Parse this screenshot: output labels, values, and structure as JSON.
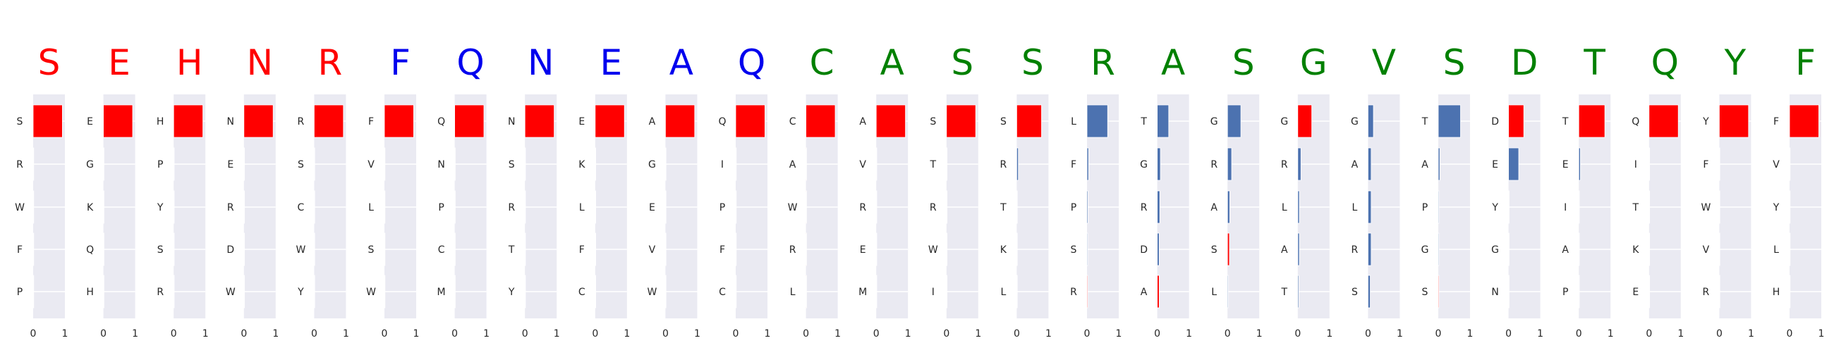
{
  "chart_data": {
    "type": "bar",
    "orientation": "horizontal",
    "xlim": [
      0,
      1
    ],
    "xticks": [
      "0",
      "1"
    ],
    "grid": true,
    "colors": {
      "red": "#ff0000",
      "blue": "#0000ee",
      "green": "#008000",
      "bar_blue": "#4c72b0",
      "bar_red": "#ff0000",
      "panel_bg": "#eaeaf2"
    },
    "panels": [
      {
        "letter": "S",
        "letter_color": "red",
        "categories": [
          "S",
          "R",
          "W",
          "F",
          "P"
        ],
        "values": [
          0.92,
          0,
          0,
          0,
          0
        ],
        "bar_colors": [
          "red",
          "red",
          "red",
          "red",
          "red"
        ]
      },
      {
        "letter": "E",
        "letter_color": "red",
        "categories": [
          "E",
          "G",
          "K",
          "Q",
          "H"
        ],
        "values": [
          0.92,
          0,
          0,
          0,
          0
        ],
        "bar_colors": [
          "red",
          "red",
          "red",
          "red",
          "red"
        ]
      },
      {
        "letter": "H",
        "letter_color": "red",
        "categories": [
          "H",
          "P",
          "Y",
          "S",
          "R"
        ],
        "values": [
          0.92,
          0,
          0,
          0,
          0
        ],
        "bar_colors": [
          "red",
          "red",
          "red",
          "red",
          "red"
        ]
      },
      {
        "letter": "N",
        "letter_color": "red",
        "categories": [
          "N",
          "E",
          "R",
          "D",
          "W"
        ],
        "values": [
          0.92,
          0,
          0,
          0,
          0
        ],
        "bar_colors": [
          "red",
          "red",
          "red",
          "red",
          "red"
        ]
      },
      {
        "letter": "R",
        "letter_color": "red",
        "categories": [
          "R",
          "S",
          "C",
          "W",
          "Y"
        ],
        "values": [
          0.92,
          0,
          0,
          0,
          0
        ],
        "bar_colors": [
          "red",
          "red",
          "red",
          "red",
          "red"
        ]
      },
      {
        "letter": "F",
        "letter_color": "blue",
        "categories": [
          "F",
          "V",
          "L",
          "S",
          "W"
        ],
        "values": [
          0.92,
          0,
          0,
          0,
          0
        ],
        "bar_colors": [
          "red",
          "red",
          "red",
          "red",
          "red"
        ]
      },
      {
        "letter": "Q",
        "letter_color": "blue",
        "categories": [
          "Q",
          "N",
          "P",
          "C",
          "M"
        ],
        "values": [
          0.92,
          0,
          0,
          0,
          0
        ],
        "bar_colors": [
          "red",
          "red",
          "red",
          "red",
          "red"
        ]
      },
      {
        "letter": "N",
        "letter_color": "blue",
        "categories": [
          "N",
          "S",
          "R",
          "T",
          "Y"
        ],
        "values": [
          0.92,
          0,
          0,
          0,
          0
        ],
        "bar_colors": [
          "red",
          "red",
          "red",
          "red",
          "red"
        ]
      },
      {
        "letter": "E",
        "letter_color": "blue",
        "categories": [
          "E",
          "K",
          "L",
          "F",
          "C"
        ],
        "values": [
          0.92,
          0,
          0,
          0,
          0
        ],
        "bar_colors": [
          "red",
          "red",
          "red",
          "red",
          "red"
        ]
      },
      {
        "letter": "A",
        "letter_color": "blue",
        "categories": [
          "A",
          "G",
          "E",
          "V",
          "W"
        ],
        "values": [
          0.92,
          0,
          0,
          0,
          0
        ],
        "bar_colors": [
          "red",
          "red",
          "red",
          "red",
          "red"
        ]
      },
      {
        "letter": "Q",
        "letter_color": "blue",
        "categories": [
          "Q",
          "I",
          "P",
          "F",
          "C"
        ],
        "values": [
          0.92,
          0,
          0,
          0,
          0
        ],
        "bar_colors": [
          "red",
          "red",
          "red",
          "red",
          "red"
        ]
      },
      {
        "letter": "C",
        "letter_color": "green",
        "categories": [
          "C",
          "A",
          "W",
          "R",
          "L"
        ],
        "values": [
          0.92,
          0,
          0,
          0,
          0
        ],
        "bar_colors": [
          "red",
          "red",
          "red",
          "red",
          "red"
        ]
      },
      {
        "letter": "A",
        "letter_color": "green",
        "categories": [
          "A",
          "V",
          "R",
          "E",
          "M"
        ],
        "values": [
          0.92,
          0,
          0,
          0,
          0
        ],
        "bar_colors": [
          "red",
          "red",
          "red",
          "red",
          "red"
        ]
      },
      {
        "letter": "S",
        "letter_color": "green",
        "categories": [
          "S",
          "T",
          "R",
          "W",
          "I"
        ],
        "values": [
          0.92,
          0,
          0,
          0,
          0
        ],
        "bar_colors": [
          "red",
          "red",
          "red",
          "red",
          "red"
        ]
      },
      {
        "letter": "S",
        "letter_color": "green",
        "categories": [
          "S",
          "R",
          "T",
          "K",
          "L"
        ],
        "values": [
          0.78,
          0.05,
          0,
          0,
          0
        ],
        "bar_colors": [
          "red",
          "blue",
          "blue",
          "blue",
          "blue"
        ]
      },
      {
        "letter": "R",
        "letter_color": "green",
        "categories": [
          "L",
          "F",
          "P",
          "S",
          "R"
        ],
        "values": [
          0.65,
          0.05,
          0.03,
          0.02,
          0.02
        ],
        "bar_colors": [
          "blue",
          "blue",
          "blue",
          "blue",
          "red"
        ]
      },
      {
        "letter": "A",
        "letter_color": "green",
        "categories": [
          "T",
          "G",
          "R",
          "D",
          "A"
        ],
        "values": [
          0.36,
          0.1,
          0.08,
          0.06,
          0.06
        ],
        "bar_colors": [
          "blue",
          "blue",
          "blue",
          "blue",
          "red"
        ]
      },
      {
        "letter": "S",
        "letter_color": "green",
        "categories": [
          "G",
          "R",
          "A",
          "S",
          "L"
        ],
        "values": [
          0.42,
          0.13,
          0.07,
          0.06,
          0.02
        ],
        "bar_colors": [
          "blue",
          "blue",
          "blue",
          "red",
          "blue"
        ]
      },
      {
        "letter": "G",
        "letter_color": "green",
        "categories": [
          "G",
          "R",
          "L",
          "A",
          "T"
        ],
        "values": [
          0.44,
          0.1,
          0.05,
          0.05,
          0.03
        ],
        "bar_colors": [
          "red",
          "blue",
          "blue",
          "blue",
          "blue"
        ]
      },
      {
        "letter": "V",
        "letter_color": "green",
        "categories": [
          "G",
          "A",
          "L",
          "R",
          "S"
        ],
        "values": [
          0.17,
          0.1,
          0.1,
          0.1,
          0.07
        ],
        "bar_colors": [
          "blue",
          "blue",
          "blue",
          "blue",
          "blue"
        ]
      },
      {
        "letter": "S",
        "letter_color": "green",
        "categories": [
          "T",
          "A",
          "P",
          "G",
          "S"
        ],
        "values": [
          0.7,
          0.05,
          0.02,
          0.02,
          0.02
        ],
        "bar_colors": [
          "blue",
          "blue",
          "blue",
          "blue",
          "red"
        ]
      },
      {
        "letter": "D",
        "letter_color": "green",
        "categories": [
          "D",
          "E",
          "Y",
          "G",
          "N"
        ],
        "values": [
          0.48,
          0.32,
          0,
          0,
          0
        ],
        "bar_colors": [
          "red",
          "blue",
          "blue",
          "blue",
          "blue"
        ]
      },
      {
        "letter": "T",
        "letter_color": "green",
        "categories": [
          "T",
          "E",
          "I",
          "A",
          "P"
        ],
        "values": [
          0.82,
          0.05,
          0,
          0,
          0
        ],
        "bar_colors": [
          "red",
          "blue",
          "blue",
          "blue",
          "blue"
        ]
      },
      {
        "letter": "Q",
        "letter_color": "green",
        "categories": [
          "Q",
          "I",
          "T",
          "K",
          "E"
        ],
        "values": [
          0.92,
          0,
          0,
          0,
          0
        ],
        "bar_colors": [
          "red",
          "red",
          "red",
          "red",
          "red"
        ]
      },
      {
        "letter": "Y",
        "letter_color": "green",
        "categories": [
          "Y",
          "F",
          "W",
          "V",
          "R"
        ],
        "values": [
          0.92,
          0,
          0,
          0,
          0
        ],
        "bar_colors": [
          "red",
          "red",
          "red",
          "red",
          "red"
        ]
      },
      {
        "letter": "F",
        "letter_color": "green",
        "categories": [
          "F",
          "V",
          "Y",
          "L",
          "H"
        ],
        "values": [
          0.92,
          0,
          0,
          0,
          0
        ],
        "bar_colors": [
          "red",
          "red",
          "red",
          "red",
          "red"
        ]
      }
    ]
  }
}
